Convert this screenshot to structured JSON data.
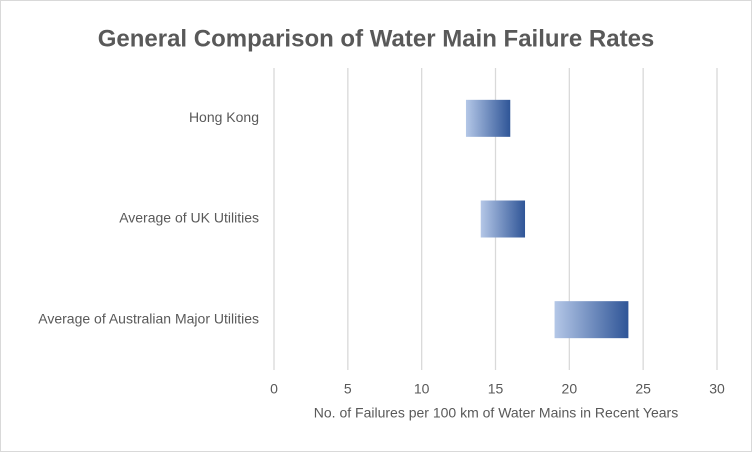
{
  "chart_data": {
    "type": "floating-bar",
    "orientation": "horizontal",
    "title": "General Comparison of Water Main Failure Rates",
    "x_label": "No. of Failures per 100 km of Water Mains in Recent Years",
    "categories": [
      "Hong Kong",
      "Average of UK Utilities",
      "Average of Australian Major Utilities"
    ],
    "low": [
      13,
      14,
      19
    ],
    "high": [
      16,
      17,
      24
    ],
    "color_start": "#b4c7e7",
    "color_end": "#2f5597",
    "xlim": [
      0,
      30
    ],
    "xticks": [
      0,
      5,
      10,
      15,
      20,
      25,
      30
    ],
    "grid": true
  }
}
